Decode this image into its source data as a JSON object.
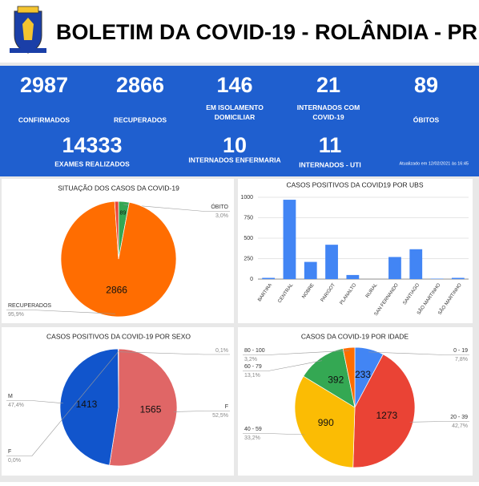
{
  "header": {
    "title": "BOLETIM DA COVID-19 - ROLÂNDIA - PR",
    "updated": "Atualizado em 12/02/2021 às 16:45"
  },
  "stats": [
    {
      "value": 2987,
      "label": "CONFIRMADOS"
    },
    {
      "value": 2866,
      "label": "RECUPERADOS"
    },
    {
      "value": 146,
      "label": "EM ISOLAMENTO DOMICILIAR"
    },
    {
      "value": 21,
      "label": "INTERNADOS COM COVID-19"
    },
    {
      "value": 89,
      "label": "ÓBITOS"
    },
    {
      "value": 14333,
      "label": "EXAMES REALIZADOS"
    },
    {
      "value": 10,
      "label": "INTERNADOS ENFERMARIA"
    },
    {
      "value": 11,
      "label": "INTERNADOS - UTI"
    }
  ],
  "chart_data": [
    {
      "type": "pie",
      "title": "SITUAÇÃO DOS CASOS DA COVID-19",
      "categories": [
        "ÓBITO",
        "RECUPERADOS",
        null
      ],
      "values": [
        89,
        2866,
        32
      ],
      "value_labels": [
        "89",
        "2866",
        null
      ],
      "percent_labels": [
        "3,0%",
        "95,9%",
        null
      ],
      "colors": [
        "#34a853",
        "#ff6d01",
        "#ea4335"
      ]
    },
    {
      "type": "bar",
      "title": "CASOS POSITIVOS DA COVID19 POR UBS",
      "categories": [
        "BARTIRA",
        "CENTRAL",
        "NOBRE",
        "PARIGOT",
        "PLANALTO",
        "RURAL",
        "SAN FERNANDO",
        "SANTIAGO",
        "SÃO MARTINHO",
        "SÃO MARTINHO"
      ],
      "values": [
        15,
        970,
        210,
        420,
        50,
        0,
        270,
        365,
        5,
        15
      ],
      "color": "#4285f4",
      "ylim": [
        0,
        1000
      ],
      "yticks": [
        0,
        250,
        500,
        750,
        1000
      ],
      "grid": true
    },
    {
      "type": "pie",
      "title": "CASOS POSITIVOS DA COVID-19 POR SEXO",
      "categories": [
        "F",
        "M",
        "F",
        null
      ],
      "values": [
        1565,
        1413,
        0,
        3
      ],
      "value_labels": [
        "1565",
        "1413",
        null,
        null
      ],
      "percent_labels": [
        "52,5%",
        "47,4%",
        "0,0%",
        "0,1%"
      ],
      "colors": [
        "#e06666",
        "#1155cc",
        "#93c47d",
        "#ff6d01"
      ]
    },
    {
      "type": "pie",
      "title": "CASOS DA COVID-19 POR IDADE",
      "categories": [
        "0 - 19",
        "20 - 39",
        "40 - 59",
        "60 - 79",
        "80 - 100"
      ],
      "values": [
        233,
        1273,
        990,
        392,
        95
      ],
      "value_labels": [
        "233",
        "1273",
        "990",
        "392",
        null
      ],
      "percent_labels": [
        "7,8%",
        "42,7%",
        "33,2%",
        "13,1%",
        "3,2%"
      ],
      "colors": [
        "#4285f4",
        "#ea4335",
        "#fbbc04",
        "#34a853",
        "#ff6d01"
      ]
    }
  ]
}
